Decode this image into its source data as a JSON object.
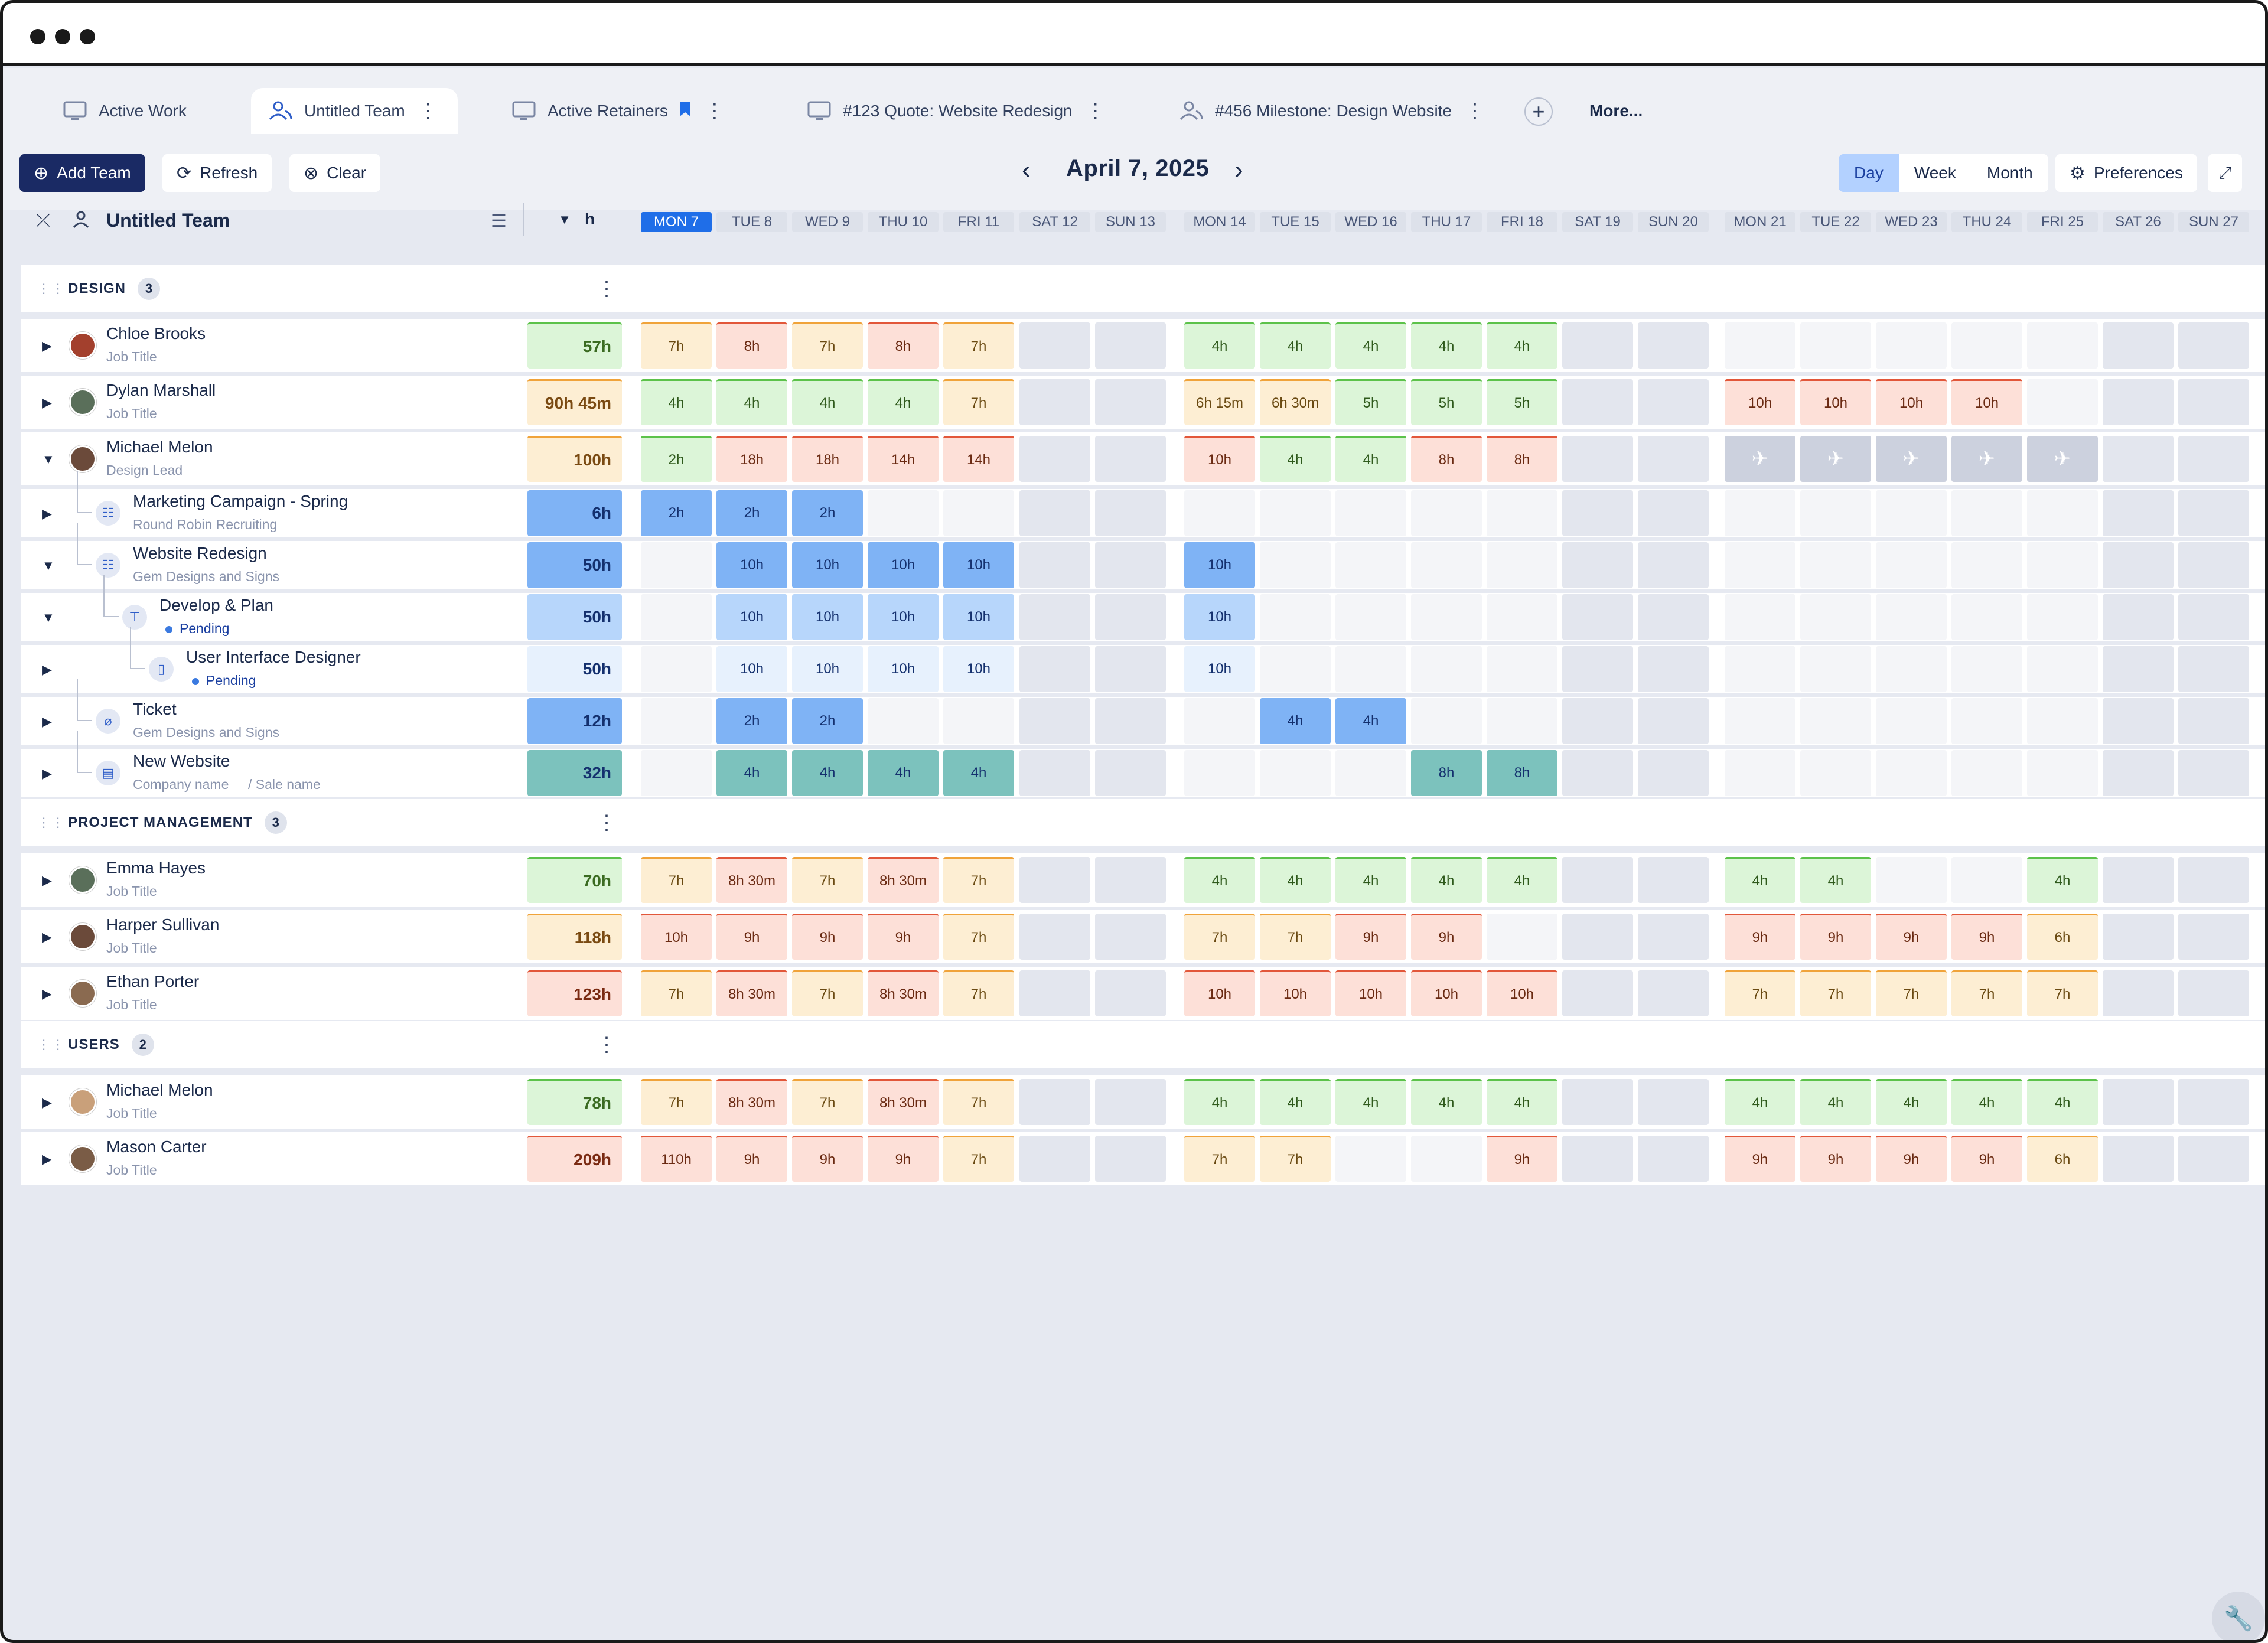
{
  "tabs": [
    {
      "label": "Active Work",
      "icon": "monitor-icon"
    },
    {
      "label": "Untitled Team",
      "icon": "team-icon"
    },
    {
      "label": "Active Retainers",
      "icon": "monitor-icon"
    },
    {
      "label": "#123 Quote: Website Redesign",
      "icon": "monitor-icon"
    },
    {
      "label": "#456 Milestone: Design Website",
      "icon": "team-icon"
    }
  ],
  "tab_more": "More...",
  "toolbar": {
    "add_team": "Add Team",
    "refresh": "Refresh",
    "clear": "Clear",
    "date": "April 7, 2025",
    "day": "Day",
    "week": "Week",
    "month": "Month",
    "preferences": "Preferences"
  },
  "team": {
    "title": "Untitled Team",
    "unit": "h"
  },
  "days": [
    "MON 7",
    "TUE 8",
    "WED 9",
    "THU 10",
    "FRI 11",
    "SAT 12",
    "SUN 13",
    "MON 14",
    "TUE 15",
    "WED 16",
    "THU 17",
    "FRI 18",
    "SAT 19",
    "SUN 20",
    "MON 21",
    "TUE 22",
    "WED 23",
    "THU 24",
    "FRI 25",
    "SAT 26",
    "SUN 27"
  ],
  "sections": [
    {
      "title": "DESIGN",
      "count": "3"
    },
    {
      "title": "PROJECT MANAGEMENT",
      "count": "3"
    },
    {
      "title": "USERS",
      "count": "2"
    }
  ],
  "rows": [
    {
      "name": "Chloe Brooks",
      "sub": "Job Title",
      "total": "57h",
      "cells": [
        "7h",
        "8h",
        "7h",
        "8h",
        "7h",
        "",
        "",
        "4h",
        "4h",
        "4h",
        "4h",
        "4h",
        "",
        "",
        "",
        "",
        "",
        "",
        "",
        "",
        ""
      ]
    },
    {
      "name": "Dylan Marshall",
      "sub": "Job Title",
      "total": "90h 45m",
      "cells": [
        "4h",
        "4h",
        "4h",
        "4h",
        "7h",
        "",
        "",
        "6h 15m",
        "6h 30m",
        "5h",
        "5h",
        "5h",
        "",
        "",
        "10h",
        "10h",
        "10h",
        "10h",
        "",
        "",
        ""
      ]
    },
    {
      "name": "Michael Melon",
      "sub": "Design Lead",
      "total": "100h",
      "cells": [
        "2h",
        "18h",
        "18h",
        "14h",
        "14h",
        "",
        "",
        "10h",
        "4h",
        "4h",
        "8h",
        "8h",
        "",
        "",
        "",
        "",
        "",
        "",
        "",
        "",
        ""
      ]
    },
    {
      "name": "Marketing Campaign - Spring",
      "sub": "Round Robin Recruiting",
      "total": "6h",
      "cells": [
        "2h",
        "2h",
        "2h",
        "",
        "",
        "",
        "",
        "",
        "",
        "",
        "",
        "",
        "",
        "",
        "",
        "",
        "",
        "",
        "",
        "",
        ""
      ]
    },
    {
      "name": "Website Redesign",
      "sub": "Gem Designs and Signs",
      "total": "50h",
      "cells": [
        "",
        "10h",
        "10h",
        "10h",
        "10h",
        "",
        "",
        "10h",
        "",
        "",
        "",
        "",
        "",
        "",
        "",
        "",
        "",
        "",
        "",
        "",
        ""
      ]
    },
    {
      "name": "Develop & Plan",
      "sub": "Pending",
      "total": "50h",
      "cells": [
        "",
        "10h",
        "10h",
        "10h",
        "10h",
        "",
        "",
        "10h",
        "",
        "",
        "",
        "",
        "",
        "",
        "",
        "",
        "",
        "",
        "",
        "",
        ""
      ]
    },
    {
      "name": "User Interface Designer",
      "sub": "Pending",
      "total": "50h",
      "cells": [
        "",
        "10h",
        "10h",
        "10h",
        "10h",
        "",
        "",
        "10h",
        "",
        "",
        "",
        "",
        "",
        "",
        "",
        "",
        "",
        "",
        "",
        "",
        ""
      ]
    },
    {
      "name": "Ticket",
      "sub": "Gem Designs and Signs",
      "total": "12h",
      "cells": [
        "",
        "2h",
        "2h",
        "",
        "",
        "",
        "",
        "",
        "4h",
        "4h",
        "",
        "",
        "",
        "",
        "",
        "",
        "",
        "",
        "",
        "",
        ""
      ]
    },
    {
      "name": "New Website",
      "sub": "Company name",
      "sub2": "Sale name",
      "total": "32h",
      "cells": [
        "",
        "4h",
        "4h",
        "4h",
        "4h",
        "",
        "",
        "",
        "",
        "",
        "8h",
        "8h",
        "",
        "",
        "",
        "",
        "",
        "",
        "",
        "",
        ""
      ]
    },
    {
      "name": "Emma Hayes",
      "sub": "Job Title",
      "total": "70h",
      "cells": [
        "7h",
        "8h 30m",
        "7h",
        "8h 30m",
        "7h",
        "",
        "",
        "4h",
        "4h",
        "4h",
        "4h",
        "4h",
        "",
        "",
        "4h",
        "4h",
        "",
        "",
        "4h",
        "",
        ""
      ]
    },
    {
      "name": "Harper Sullivan",
      "sub": "Job Title",
      "total": "118h",
      "cells": [
        "10h",
        "9h",
        "9h",
        "9h",
        "7h",
        "",
        "",
        "7h",
        "7h",
        "9h",
        "9h",
        "",
        "",
        "",
        "9h",
        "9h",
        "9h",
        "9h",
        "6h",
        "",
        ""
      ]
    },
    {
      "name": "Ethan Porter",
      "sub": "Job Title",
      "total": "123h",
      "cells": [
        "7h",
        "8h 30m",
        "7h",
        "8h 30m",
        "7h",
        "",
        "",
        "10h",
        "10h",
        "10h",
        "10h",
        "10h",
        "",
        "",
        "7h",
        "7h",
        "7h",
        "7h",
        "7h",
        "",
        ""
      ]
    },
    {
      "name": "Michael Melon",
      "sub": "Job Title",
      "total": "78h",
      "cells": [
        "7h",
        "8h 30m",
        "7h",
        "8h 30m",
        "7h",
        "",
        "",
        "4h",
        "4h",
        "4h",
        "4h",
        "4h",
        "",
        "",
        "4h",
        "4h",
        "4h",
        "4h",
        "4h",
        "",
        ""
      ]
    },
    {
      "name": "Mason Carter",
      "sub": "Job Title",
      "total": "209h",
      "cells": [
        "110h",
        "9h",
        "9h",
        "9h",
        "7h",
        "",
        "",
        "7h",
        "7h",
        "",
        "",
        "9h",
        "",
        "",
        "9h",
        "9h",
        "9h",
        "9h",
        "6h",
        "",
        ""
      ]
    }
  ]
}
